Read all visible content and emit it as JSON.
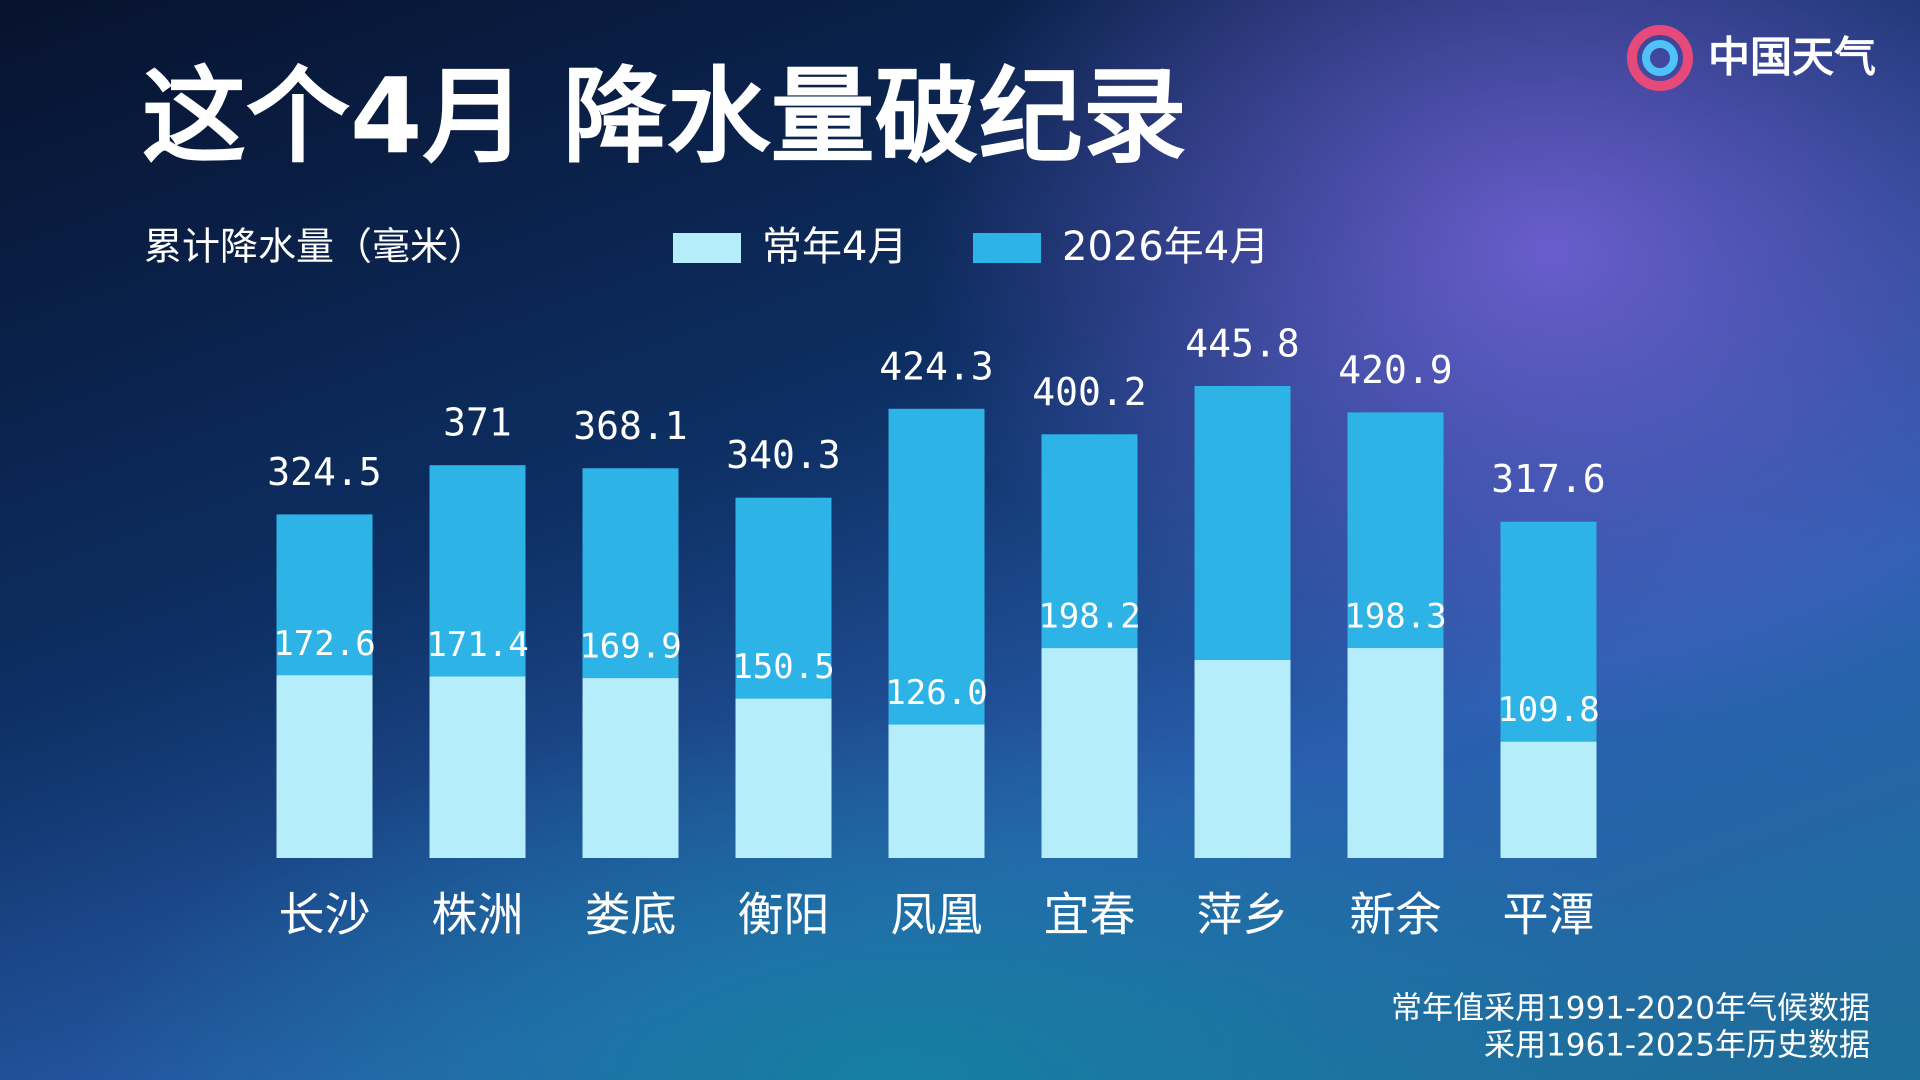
{
  "logo": "中国天气",
  "chart_data": {
    "type": "bar",
    "barmode": "overlay",
    "title": "这个4月  降水量破纪录",
    "ylabel": "累计降水量（毫米）",
    "categories": [
      "长沙",
      "株洲",
      "娄底",
      "衡阳",
      "凤凰",
      "宜春",
      "萍乡",
      "新余",
      "平潭"
    ],
    "series": [
      {
        "name": "常年4月",
        "color": "#b6edfa",
        "values": [
          172.6,
          171.4,
          169.9,
          150.5,
          126.0,
          198.2,
          187,
          198.3,
          109.8
        ],
        "value_labels": [
          "172.6",
          "171.4",
          "169.9",
          "150.5",
          "126.0",
          "198.2",
          null,
          "198.3",
          "109.8"
        ]
      },
      {
        "name": "2026年4月",
        "color": "#2eb3e6",
        "values": [
          324.5,
          371,
          368.1,
          340.3,
          424.3,
          400.2,
          445.8,
          420.9,
          317.6
        ]
      }
    ],
    "notes": [
      "常年值采用1991-2020年气候数据",
      "采用1961-2025年历史数据"
    ]
  }
}
